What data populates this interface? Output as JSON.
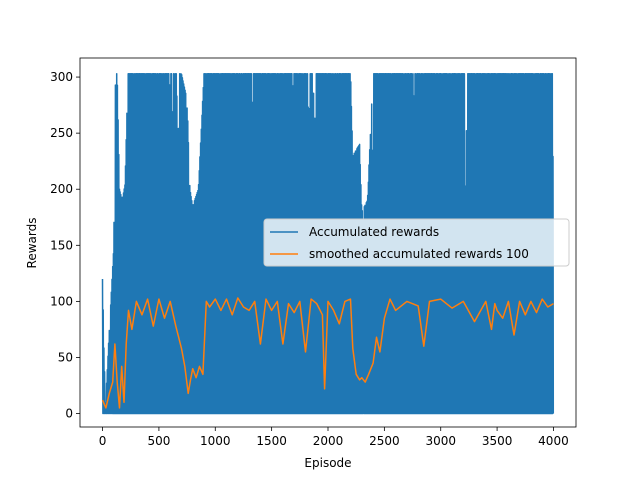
{
  "chart_data": {
    "type": "line",
    "xlabel": "Episode",
    "ylabel": "Rewards",
    "xlim": [
      -200,
      4200
    ],
    "ylim": [
      -12,
      317
    ],
    "x_ticks": [
      0,
      500,
      1000,
      1500,
      2000,
      2500,
      3000,
      3500,
      4000
    ],
    "y_ticks": [
      0,
      50,
      100,
      150,
      200,
      250,
      300
    ],
    "x_tick_labels": [
      "0",
      "500",
      "1000",
      "1500",
      "2000",
      "2500",
      "3000",
      "3500",
      "4000"
    ],
    "y_tick_labels": [
      "0",
      "50",
      "100",
      "150",
      "200",
      "250",
      "300"
    ],
    "legend_position": "center-right",
    "series": [
      {
        "name": "Accumulated rewards",
        "color": "#1f77b4",
        "style": "dense oscillation between min and max per episode window",
        "x": [
          0,
          25,
          50,
          100,
          115,
          130,
          150,
          175,
          200,
          225,
          250,
          300,
          400,
          500,
          600,
          700,
          750,
          775,
          800,
          850,
          900,
          950,
          1000,
          1200,
          1500,
          1800,
          1950,
          2000,
          2100,
          2200,
          2220,
          2280,
          2300,
          2350,
          2400,
          2450,
          2500,
          2600,
          3000,
          3400,
          3450,
          3500,
          3700,
          4000
        ],
        "high": [
          120,
          5,
          55,
          150,
          303,
          303,
          200,
          190,
          205,
          303,
          303,
          303,
          303,
          303,
          303,
          303,
          280,
          200,
          185,
          200,
          303,
          303,
          303,
          303,
          303,
          303,
          303,
          303,
          303,
          303,
          230,
          240,
          180,
          190,
          303,
          303,
          303,
          303,
          303,
          303,
          303,
          303,
          303,
          303
        ],
        "low": [
          0,
          0,
          0,
          0,
          0,
          0,
          0,
          0,
          0,
          0,
          0,
          0,
          0,
          0,
          0,
          0,
          0,
          0,
          0,
          0,
          0,
          0,
          0,
          0,
          0,
          0,
          0,
          0,
          0,
          0,
          0,
          0,
          0,
          0,
          0,
          0,
          0,
          0,
          0,
          0,
          0,
          0,
          0,
          0
        ]
      },
      {
        "name": "smoothed accumulated rewards 100",
        "color": "#ff7f0e",
        "x": [
          0,
          30,
          60,
          90,
          110,
          130,
          150,
          170,
          190,
          210,
          230,
          260,
          300,
          350,
          400,
          450,
          500,
          550,
          600,
          650,
          700,
          730,
          760,
          780,
          800,
          830,
          860,
          890,
          920,
          950,
          1000,
          1050,
          1100,
          1150,
          1200,
          1250,
          1300,
          1350,
          1400,
          1450,
          1500,
          1550,
          1600,
          1650,
          1700,
          1750,
          1800,
          1850,
          1900,
          1950,
          1970,
          2000,
          2050,
          2100,
          2150,
          2200,
          2220,
          2250,
          2280,
          2300,
          2330,
          2360,
          2400,
          2430,
          2460,
          2500,
          2550,
          2600,
          2700,
          2800,
          2850,
          2900,
          3000,
          3100,
          3200,
          3300,
          3400,
          3450,
          3480,
          3500,
          3550,
          3600,
          3650,
          3700,
          3750,
          3800,
          3850,
          3900,
          3950,
          4000
        ],
        "values": [
          12,
          5,
          18,
          28,
          62,
          28,
          5,
          42,
          10,
          62,
          92,
          75,
          100,
          88,
          102,
          78,
          102,
          85,
          100,
          78,
          58,
          42,
          18,
          30,
          40,
          32,
          42,
          35,
          100,
          95,
          102,
          92,
          102,
          88,
          103,
          95,
          92,
          100,
          62,
          102,
          92,
          100,
          62,
          98,
          90,
          100,
          55,
          102,
          98,
          88,
          22,
          100,
          92,
          80,
          100,
          102,
          58,
          35,
          30,
          32,
          28,
          35,
          45,
          68,
          55,
          85,
          102,
          92,
          100,
          96,
          60,
          100,
          102,
          94,
          100,
          82,
          100,
          75,
          98,
          92,
          85,
          100,
          70,
          100,
          88,
          100,
          90,
          102,
          95,
          98
        ]
      }
    ]
  }
}
